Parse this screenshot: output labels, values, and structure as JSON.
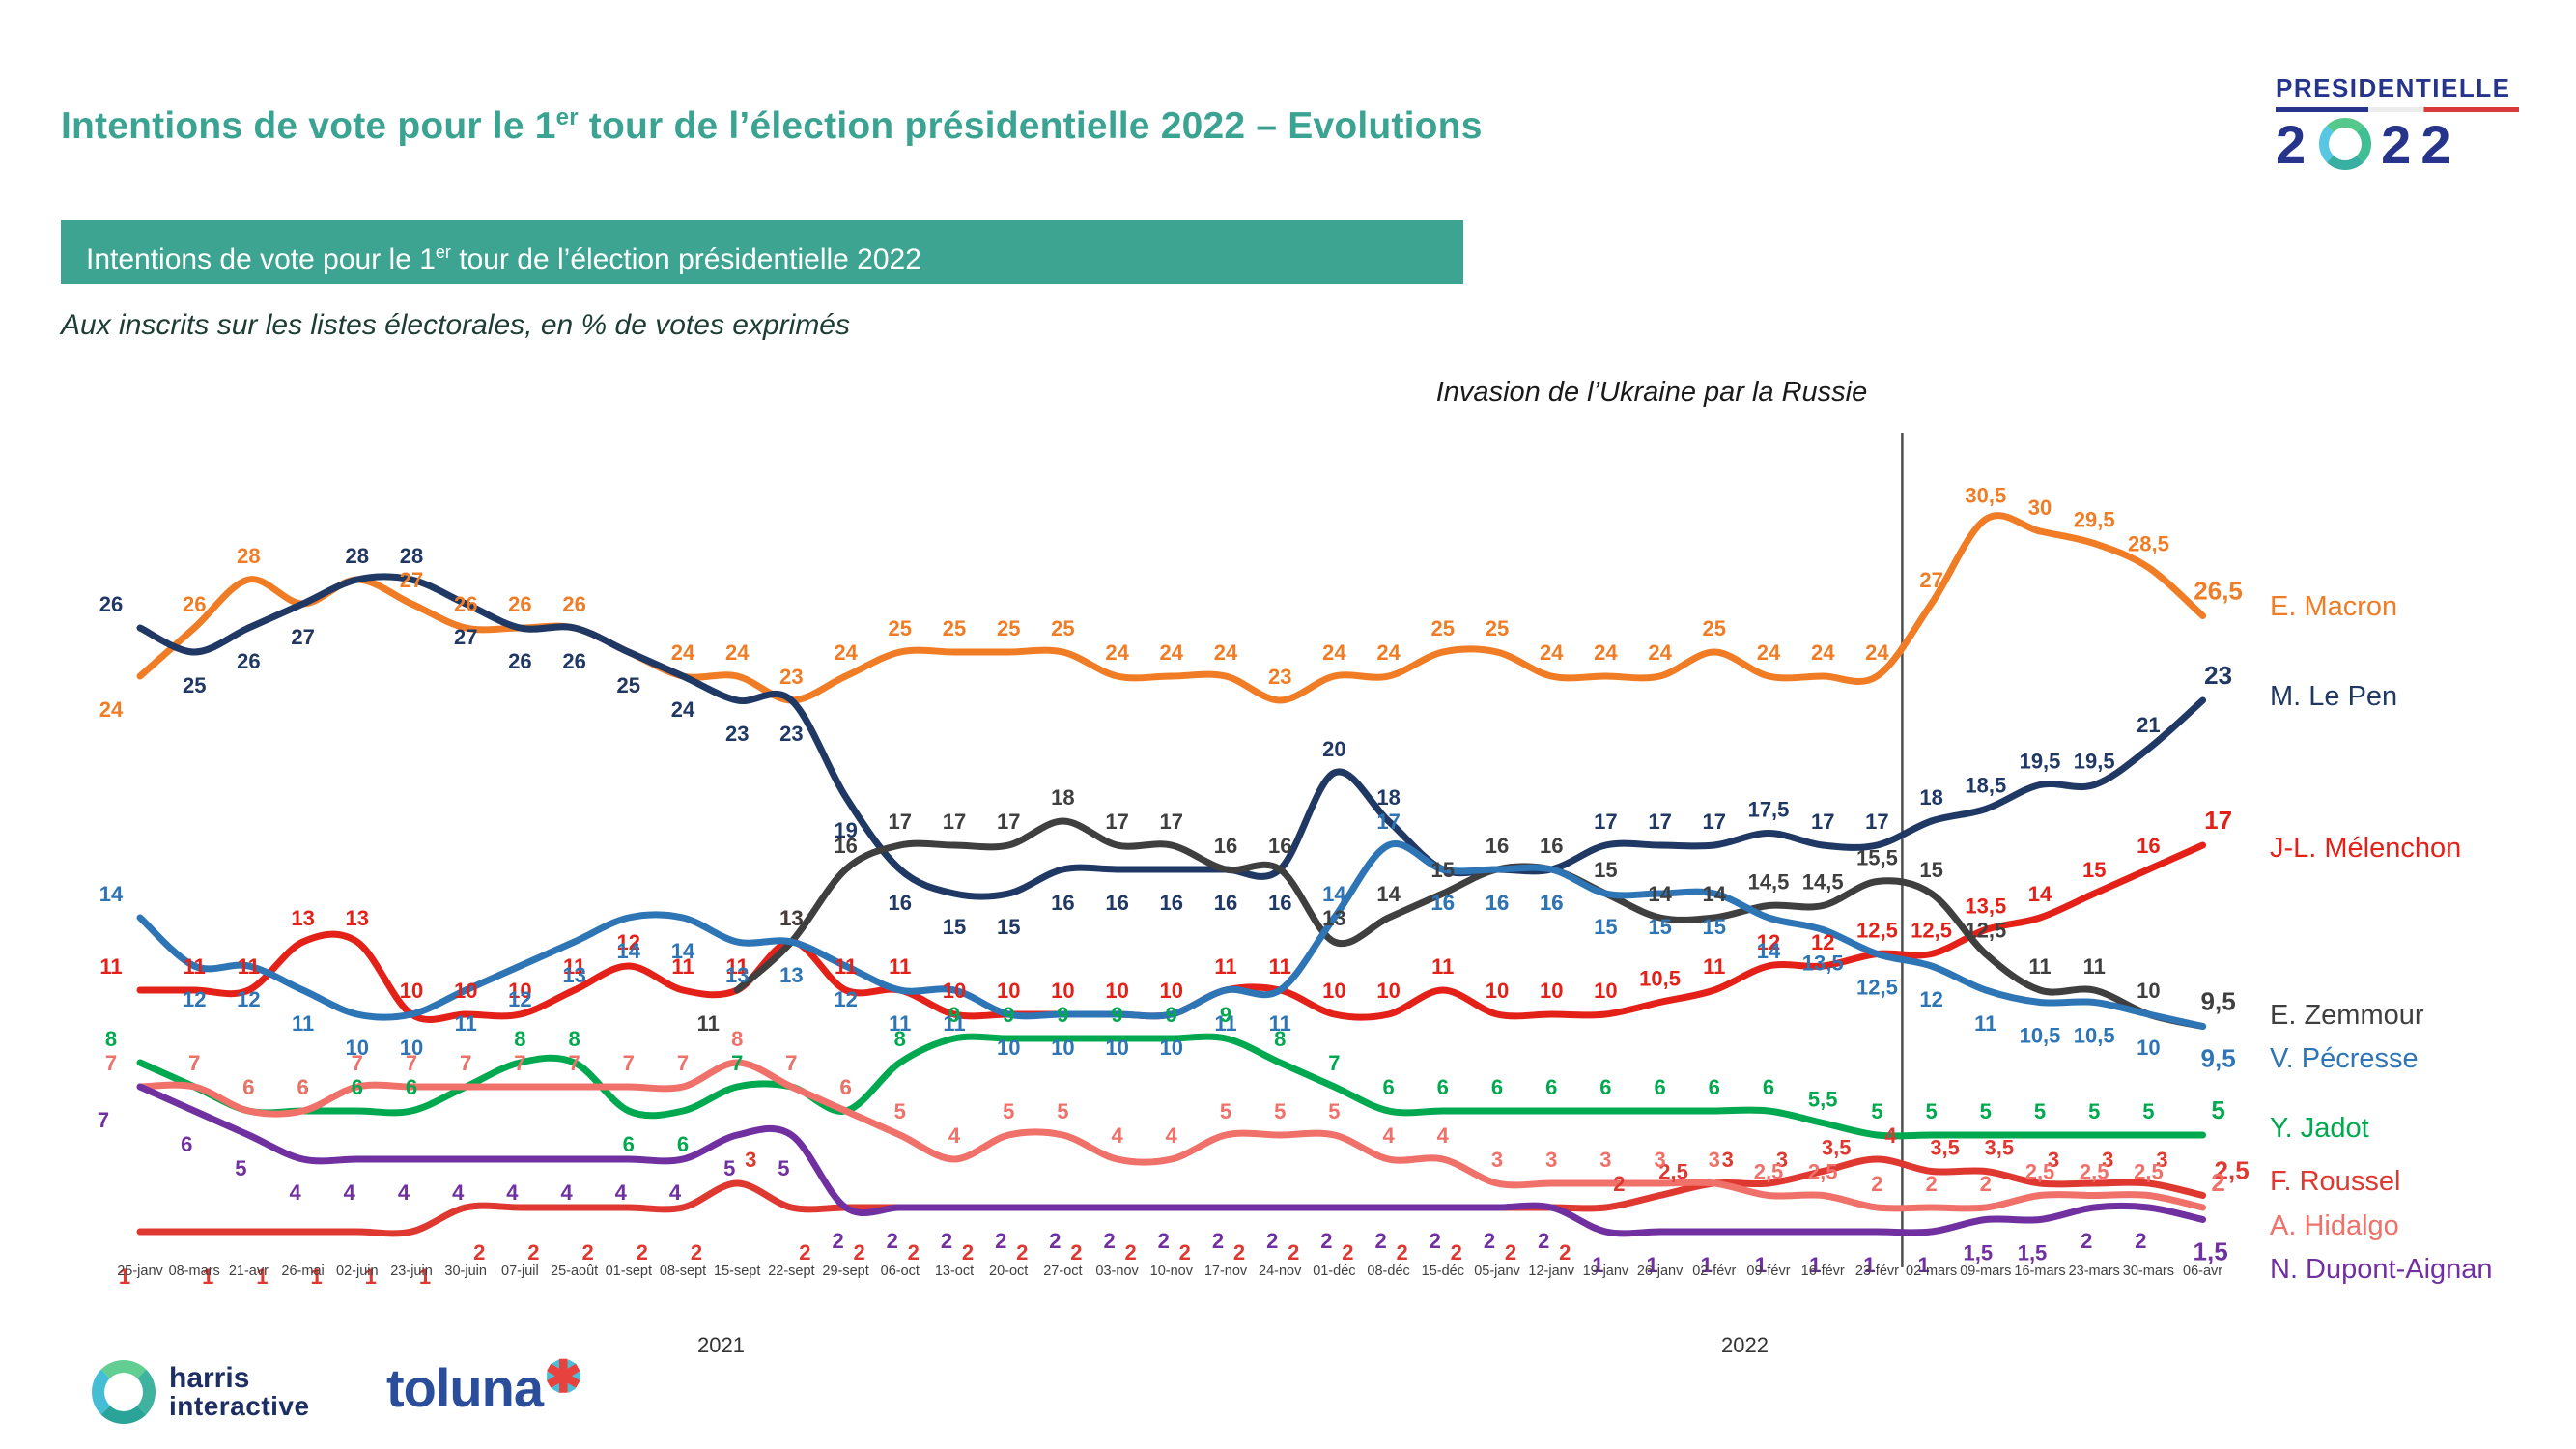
{
  "title": {
    "part1": "Intentions de vote pour le 1",
    "sup": "er",
    "part2": " tour de l’élection présidentielle 2022 – Evolutions"
  },
  "logo": {
    "word": "PRESIDENTIELLE",
    "digits": [
      "2",
      "2",
      "2"
    ]
  },
  "banner": {
    "part1": "Intentions de vote pour le 1",
    "sup": "er",
    "part2": " tour de l’élection présidentielle 2022"
  },
  "subtitle": "Aux inscrits sur les listes électorales, en % de votes exprimés",
  "annotation": {
    "text": "Invasion de l’Ukraine par la Russie"
  },
  "years": [
    "2021",
    "2022"
  ],
  "footer": {
    "harris_line1": "harris",
    "harris_line2": "interactive",
    "toluna": "toluna",
    "toluna_star": "✱"
  },
  "chart_data": {
    "type": "line",
    "title": "Intentions de vote pour le 1er tour de l’élection présidentielle 2022",
    "ylabel": "% de votes exprimés",
    "ylim": [
      0,
      32
    ],
    "grid": false,
    "legend_position": "right",
    "x_labels": [
      "25-janv",
      "08-mars",
      "21-avr",
      "26-mai",
      "02-juin",
      "23-juin",
      "30-juin",
      "07-juil",
      "25-août",
      "01-sept",
      "08-sept",
      "15-sept",
      "22-sept",
      "29-sept",
      "06-oct",
      "13-oct",
      "20-oct",
      "27-oct",
      "03-nov",
      "10-nov",
      "17-nov",
      "24-nov",
      "01-déc",
      "08-déc",
      "15-déc",
      "05-janv",
      "12-janv",
      "19-janv",
      "26-janv",
      "02-févr",
      "09-févr",
      "16-févr",
      "23-févr",
      "02-mars",
      "09-mars",
      "16-mars",
      "23-mars",
      "30-mars",
      "06-avr"
    ],
    "event_line": {
      "label": "Invasion de l’Ukraine par la Russie",
      "between": [
        "23-févr",
        "02-mars"
      ]
    },
    "series": [
      {
        "name": "E. Macron",
        "color": "#F07D26",
        "values": [
          24,
          26,
          28,
          27,
          28,
          27,
          26,
          26,
          26,
          25,
          24,
          24,
          23,
          24,
          25,
          25,
          25,
          25,
          24,
          24,
          24,
          23,
          24,
          24,
          25,
          25,
          24,
          24,
          24,
          25,
          24,
          24,
          24,
          27,
          30.5,
          30,
          29.5,
          28.5,
          26.5
        ],
        "label_side": "baabaaaaabaaaaaaaaaaaaaaaaaaaaaaaaaaaaa"
      },
      {
        "name": "M. Le Pen",
        "color": "#203864",
        "values": [
          26,
          25,
          26,
          27,
          28,
          28,
          27,
          26,
          26,
          25,
          24,
          23,
          23,
          19,
          16,
          15,
          15,
          16,
          16,
          16,
          16,
          16,
          20,
          18,
          16,
          16,
          16,
          17,
          17,
          17,
          17.5,
          17,
          17,
          18,
          18.5,
          19.5,
          19.5,
          21,
          23
        ],
        "label_side": "abbbaabbbbbbbbbbbbbbbbaabbbaaaaaaaaaaaa"
      },
      {
        "name": "J-L. Mélenchon",
        "color": "#E32119",
        "values": [
          11,
          11,
          11,
          13,
          13,
          10,
          10,
          10,
          11,
          12,
          11,
          11,
          13,
          11,
          11,
          10,
          10,
          10,
          10,
          10,
          11,
          11,
          10,
          10,
          11,
          10,
          10,
          10,
          10.5,
          11,
          12,
          12,
          12.5,
          12.5,
          13.5,
          14,
          15,
          16,
          17
        ],
        "label_side": "aaaaaaaaaaaaaaaaaaaaaaaaaaaaaaaaaaaaaaa"
      },
      {
        "name": "E. Zemmour",
        "color": "#3F3F3F",
        "values": [
          null,
          null,
          null,
          null,
          null,
          null,
          null,
          null,
          null,
          null,
          null,
          11,
          13,
          16,
          17,
          17,
          17,
          18,
          17,
          17,
          16,
          16,
          13,
          14,
          15,
          16,
          16,
          15,
          14,
          14,
          14.5,
          14.5,
          15.5,
          15,
          12.5,
          11,
          11,
          10,
          9.5
        ],
        "label_side": "-----------baaaaaaaaaaaaaaaaaaaaaaaaaaa"
      },
      {
        "name": "V. Pécresse",
        "color": "#2E75B6",
        "values": [
          14,
          12,
          12,
          11,
          10,
          10,
          11,
          12,
          13,
          14,
          14,
          13,
          13,
          12,
          11,
          11,
          10,
          10,
          10,
          10,
          11,
          11,
          14,
          17,
          16,
          16,
          16,
          15,
          15,
          15,
          14,
          13.5,
          12.5,
          12,
          11,
          10.5,
          10.5,
          10,
          9.5
        ],
        "label_side": "abbbbbbbbbbbbbbbbbbbbbaabbbbbbbbbbbbbbb"
      },
      {
        "name": "Y. Jadot",
        "color": "#00A94F",
        "values": [
          8,
          7,
          6,
          6,
          6,
          6,
          7,
          8,
          8,
          6,
          6,
          7,
          7,
          6,
          8,
          9,
          9,
          9,
          9,
          9,
          9,
          8,
          7,
          6,
          6,
          6,
          6,
          6,
          6,
          6,
          6,
          5.5,
          5,
          5,
          5,
          5,
          5,
          5,
          5
        ],
        "label_side": "aaaaaaaaabbaaaaaaaaaaaaaaaaaaaaaaaaaaaa"
      },
      {
        "name": "F. Roussel",
        "color": "#DE3831",
        "values": [
          1,
          1,
          1,
          1,
          1,
          1,
          2,
          2,
          2,
          2,
          2,
          3,
          2,
          2,
          2,
          2,
          2,
          2,
          2,
          2,
          2,
          2,
          2,
          2,
          2,
          2,
          2,
          2,
          2.5,
          3,
          3,
          3.5,
          4,
          3.5,
          3.5,
          3,
          3,
          3,
          2.5
        ],
        "label_side": "bbbbbbbbbbbabbbbbbbbbbbbbbbaaaaaaaaaaaa"
      },
      {
        "name": "A. Hidalgo",
        "color": "#F0706A",
        "values": [
          7,
          7,
          6,
          6,
          7,
          7,
          7,
          7,
          7,
          7,
          7,
          8,
          7,
          6,
          5,
          4,
          5,
          5,
          4,
          4,
          5,
          5,
          5,
          4,
          4,
          3,
          3,
          3,
          3,
          3,
          2.5,
          2.5,
          2,
          2,
          2,
          2.5,
          2.5,
          2.5,
          2
        ],
        "label_side": "aaaaaaaaaaaaaaaaaaaaaaaaaaaaaaaaaaaaaaa"
      },
      {
        "name": "N. Dupont-Aignan",
        "color": "#7030A0",
        "values": [
          7,
          6,
          5,
          4,
          4,
          4,
          4,
          4,
          4,
          4,
          4,
          5,
          5,
          2,
          2,
          2,
          2,
          2,
          2,
          2,
          2,
          2,
          2,
          2,
          2,
          2,
          2,
          1,
          1,
          1,
          1,
          1,
          1,
          1,
          1.5,
          1.5,
          2,
          2,
          1.5
        ],
        "label_side": "bbbbbbbbbbbbbbbbbbbbbbbbbbbbbbbbbbbbbbb"
      }
    ]
  }
}
